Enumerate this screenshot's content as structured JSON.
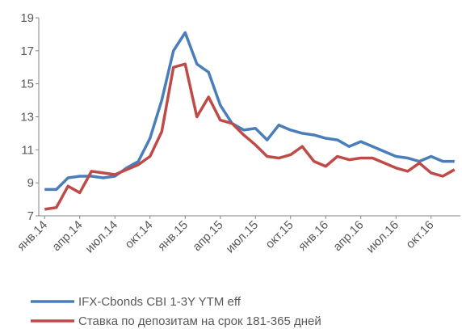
{
  "chart_data": {
    "type": "line",
    "categories": [
      "янв.14",
      null,
      null,
      "апр.14",
      null,
      null,
      "июл.14",
      null,
      null,
      "окт.14",
      null,
      null,
      "янв.15",
      null,
      null,
      "апр.15",
      null,
      null,
      "июл.15",
      null,
      null,
      "окт.15",
      null,
      null,
      "янв.16",
      null,
      null,
      "апр.16",
      null,
      null,
      "июл.16",
      null,
      null,
      "окт.16",
      null,
      null
    ],
    "series": [
      {
        "name": "IFX-Cbonds CBI 1-3Y YTM eff",
        "color": "#4a7ebb",
        "values": [
          8.6,
          8.6,
          9.3,
          9.4,
          9.4,
          9.3,
          9.4,
          9.9,
          10.3,
          11.7,
          14.0,
          17.0,
          18.1,
          16.2,
          15.7,
          13.7,
          12.6,
          12.2,
          12.3,
          11.6,
          12.5,
          12.2,
          12.0,
          11.9,
          11.7,
          11.6,
          11.2,
          11.5,
          11.2,
          10.9,
          10.6,
          10.5,
          10.3,
          10.6,
          10.3,
          10.3
        ]
      },
      {
        "name": "Ставка по депозитам на срок 181-365 дней",
        "color": "#be4b48",
        "values": [
          7.4,
          7.5,
          8.8,
          8.4,
          9.7,
          9.6,
          9.5,
          9.8,
          10.1,
          10.6,
          12.1,
          16.0,
          16.2,
          13.0,
          14.2,
          12.8,
          12.6,
          11.9,
          11.3,
          10.6,
          10.5,
          10.7,
          11.2,
          10.3,
          10.0,
          10.6,
          10.4,
          10.5,
          10.5,
          10.2,
          9.9,
          9.7,
          10.2,
          9.6,
          9.4,
          9.8
        ]
      }
    ],
    "ylim": [
      7,
      19
    ],
    "yticks": [
      7,
      9,
      11,
      13,
      15,
      17,
      19
    ],
    "grid": false
  }
}
